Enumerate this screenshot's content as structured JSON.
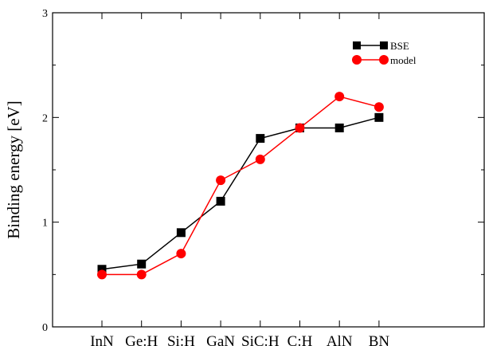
{
  "chart_data": {
    "type": "line",
    "title": "",
    "xlabel": "",
    "ylabel": "Binding energy [eV]",
    "categories": [
      "InN",
      "Ge:H",
      "Si:H",
      "GaN",
      "SiC:H",
      "C:H",
      "AlN",
      "BN"
    ],
    "ylim": [
      0,
      3
    ],
    "yticks": [
      "0",
      "1",
      "2",
      "3"
    ],
    "grid": false,
    "legend_position": "top-right",
    "series": [
      {
        "name": "BSE",
        "color": "#000000",
        "marker": "square",
        "values": [
          0.55,
          0.6,
          0.9,
          1.2,
          1.8,
          1.9,
          1.9,
          2.0
        ]
      },
      {
        "name": "model",
        "color": "#ff0000",
        "marker": "circle",
        "values": [
          0.5,
          0.5,
          0.7,
          1.4,
          1.6,
          1.9,
          2.2,
          2.1
        ]
      }
    ]
  }
}
